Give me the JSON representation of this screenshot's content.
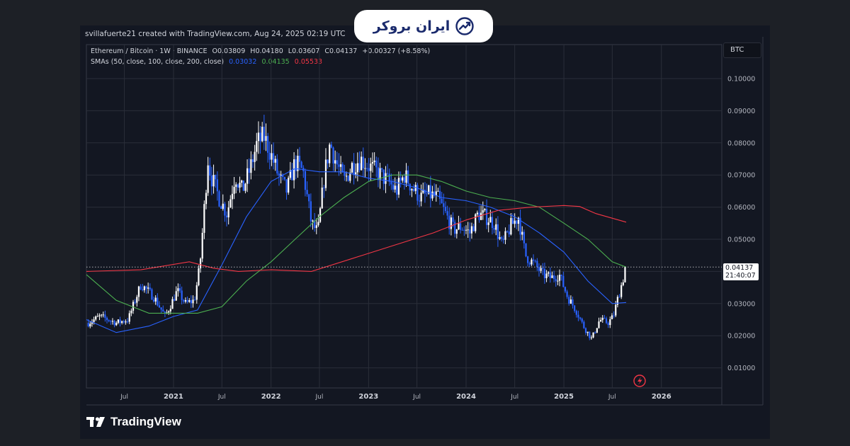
{
  "header": {
    "credit": "svillafuerte21 created with TradingView.com, Aug 24, 2025 02:19 UTC"
  },
  "legend": {
    "symbol_line": "Ethereum / Bitcoin · 1W · BINANCE",
    "open_label": "O",
    "open": "0.03809",
    "high_label": "H",
    "high": "0.04180",
    "low_label": "L",
    "low": "0.03607",
    "close_label": "C",
    "close": "0.04137",
    "change": "+0.00327 (+8.58%)",
    "sma_label": "SMAs (50, close, 100, close, 200, close)",
    "sma50": "0.03032",
    "sma100": "0.04135",
    "sma200": "0.05533"
  },
  "badge": {
    "text": "ایران بروکر"
  },
  "currency_button": "BTC",
  "price_label": {
    "price": "0.04137",
    "countdown": "21:40:07"
  },
  "footer": {
    "brand": "TradingView"
  },
  "colors": {
    "panel_bg": "#131722",
    "up": "#ffffff",
    "down": "#2962ff",
    "sma50": "#2962ff",
    "sma100": "#4caf50",
    "sma200": "#f23645",
    "grid": "#2a2e39"
  },
  "chart_data": {
    "type": "candlestick",
    "title": "Ethereum / Bitcoin · 1W · BINANCE",
    "x_tick_labels": [
      "Jul",
      "2021",
      "Jul",
      "2022",
      "Jul",
      "2023",
      "Jul",
      "2024",
      "Jul",
      "2025",
      "Jul",
      "2026"
    ],
    "x_tick_dates": [
      "2020-07-01",
      "2021-01-01",
      "2021-07-01",
      "2022-01-01",
      "2022-07-01",
      "2023-01-01",
      "2023-07-01",
      "2024-01-01",
      "2024-07-01",
      "2025-01-01",
      "2025-07-01",
      "2026-01-01"
    ],
    "y_tick_labels": [
      "0.10000",
      "0.09000",
      "0.08000",
      "0.07000",
      "0.06000",
      "0.05000",
      "0.03000",
      "0.02000",
      "0.01000"
    ],
    "ylim": [
      0.0,
      0.1
    ],
    "xlim": [
      "2020-02-10",
      "2026-08-15"
    ],
    "last_close": 0.04137,
    "close_series": {
      "x": [
        "2020-02-17",
        "2020-04-01",
        "2020-06-01",
        "2020-07-15",
        "2020-09-01",
        "2020-10-20",
        "2020-12-01",
        "2021-01-15",
        "2021-02-15",
        "2021-03-20",
        "2021-04-10",
        "2021-05-10",
        "2021-05-20",
        "2021-06-20",
        "2021-07-20",
        "2021-08-20",
        "2021-09-15",
        "2021-10-15",
        "2021-11-10",
        "2021-12-05",
        "2021-12-25",
        "2022-02-01",
        "2022-03-01",
        "2022-04-01",
        "2022-05-01",
        "2022-06-01",
        "2022-06-25",
        "2022-07-20",
        "2022-08-10",
        "2022-09-01",
        "2022-10-01",
        "2022-11-01",
        "2022-12-01",
        "2023-01-15",
        "2023-02-15",
        "2023-03-15",
        "2023-04-15",
        "2023-05-15",
        "2023-06-15",
        "2023-07-15",
        "2023-08-15",
        "2023-09-15",
        "2023-10-15",
        "2023-11-15",
        "2023-12-15",
        "2024-01-15",
        "2024-02-15",
        "2024-03-15",
        "2024-04-15",
        "2024-05-15",
        "2024-06-15",
        "2024-07-15",
        "2024-08-10",
        "2024-09-15",
        "2024-10-15",
        "2024-11-15",
        "2024-12-15",
        "2025-01-15",
        "2025-02-15",
        "2025-03-15",
        "2025-04-15",
        "2025-05-15",
        "2025-06-15",
        "2025-07-05",
        "2025-07-20",
        "2025-08-05",
        "2025-08-22"
      ],
      "y": [
        0.024,
        0.026,
        0.024,
        0.025,
        0.036,
        0.032,
        0.026,
        0.034,
        0.03,
        0.031,
        0.042,
        0.075,
        0.07,
        0.063,
        0.058,
        0.07,
        0.065,
        0.072,
        0.08,
        0.082,
        0.078,
        0.069,
        0.065,
        0.074,
        0.071,
        0.055,
        0.052,
        0.07,
        0.08,
        0.074,
        0.068,
        0.073,
        0.075,
        0.072,
        0.07,
        0.068,
        0.065,
        0.07,
        0.066,
        0.063,
        0.064,
        0.063,
        0.058,
        0.053,
        0.054,
        0.052,
        0.058,
        0.057,
        0.055,
        0.048,
        0.054,
        0.057,
        0.045,
        0.042,
        0.039,
        0.038,
        0.039,
        0.032,
        0.028,
        0.023,
        0.019,
        0.025,
        0.024,
        0.026,
        0.031,
        0.036,
        0.041
      ]
    },
    "series": [
      {
        "name": "SMA 50",
        "x": [
          "2020-02-10",
          "2020-06-01",
          "2020-10-01",
          "2021-01-01",
          "2021-04-01",
          "2021-07-01",
          "2021-10-01",
          "2022-01-01",
          "2022-04-01",
          "2022-07-01",
          "2022-10-01",
          "2023-01-01",
          "2023-04-01",
          "2023-07-01",
          "2023-10-01",
          "2024-01-01",
          "2024-04-01",
          "2024-07-01",
          "2024-10-01",
          "2025-01-01",
          "2025-04-01",
          "2025-07-01",
          "2025-08-22"
        ],
        "y": [
          0.025,
          0.021,
          0.023,
          0.026,
          0.028,
          0.042,
          0.057,
          0.068,
          0.072,
          0.071,
          0.071,
          0.069,
          0.068,
          0.066,
          0.063,
          0.062,
          0.06,
          0.057,
          0.052,
          0.046,
          0.037,
          0.03,
          0.03032
        ]
      },
      {
        "name": "SMA 100",
        "x": [
          "2020-02-10",
          "2020-06-01",
          "2020-10-01",
          "2021-01-01",
          "2021-04-01",
          "2021-07-01",
          "2021-10-01",
          "2022-01-01",
          "2022-04-01",
          "2022-07-01",
          "2022-10-01",
          "2023-01-01",
          "2023-04-01",
          "2023-07-01",
          "2023-10-01",
          "2024-01-01",
          "2024-04-01",
          "2024-07-01",
          "2024-10-01",
          "2025-01-01",
          "2025-04-01",
          "2025-07-01",
          "2025-08-22"
        ],
        "y": [
          0.039,
          0.031,
          0.027,
          0.027,
          0.027,
          0.029,
          0.037,
          0.043,
          0.05,
          0.057,
          0.063,
          0.068,
          0.07,
          0.07,
          0.068,
          0.065,
          0.063,
          0.062,
          0.06,
          0.055,
          0.05,
          0.043,
          0.04135
        ]
      },
      {
        "name": "SMA 200",
        "x": [
          "2020-02-10",
          "2020-09-01",
          "2021-03-01",
          "2021-06-01",
          "2021-09-01",
          "2022-01-01",
          "2022-06-01",
          "2022-11-01",
          "2023-04-01",
          "2023-09-01",
          "2024-01-01",
          "2024-05-01",
          "2024-09-01",
          "2025-01-01",
          "2025-03-01",
          "2025-05-01",
          "2025-08-22"
        ],
        "y": [
          0.04,
          0.0405,
          0.043,
          0.041,
          0.04,
          0.0405,
          0.04,
          0.044,
          0.048,
          0.052,
          0.056,
          0.059,
          0.06,
          0.0605,
          0.0602,
          0.058,
          0.05533
        ]
      }
    ]
  }
}
